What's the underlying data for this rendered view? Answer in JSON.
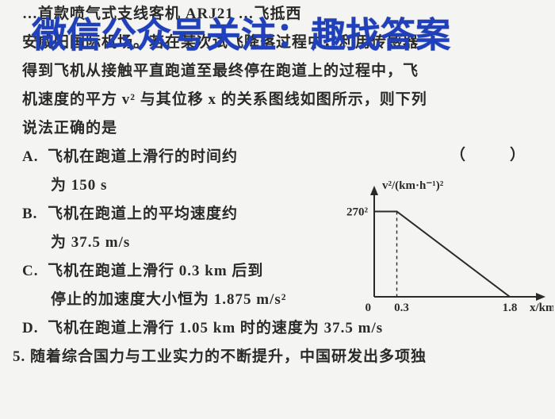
{
  "overlay": {
    "text": "微信公众号关注：趣找答案",
    "color": "#2142c8"
  },
  "question": {
    "lines": [
      "…首款喷气式支线客机 ARJ21 …飞抵西",
      "安咸阳国际机场。若在某次试飞降落过程中，利用传感器",
      "得到飞机从接触平直跑道至最终停在跑道上的过程中，飞",
      "机速度的平方 v² 与其位移 x 的关系图线如图所示，则下列",
      "说法正确的是"
    ],
    "paren": "（　　）"
  },
  "options": [
    {
      "label": "A.",
      "lines": [
        "飞机在跑道上滑行的时间约",
        "为 150 s"
      ]
    },
    {
      "label": "B.",
      "lines": [
        "飞机在跑道上的平均速度约",
        "为 37.5 m/s"
      ]
    },
    {
      "label": "C.",
      "lines": [
        "飞机在跑道上滑行 0.3 km 后到",
        "停止的加速度大小恒为 1.875 m/s²"
      ]
    },
    {
      "label": "D.",
      "lines": [
        "飞机在跑道上滑行 1.05 km 时的速度为 37.5 m/s"
      ]
    }
  ],
  "next_question": {
    "number": "5.",
    "text": "随着综合国力与工业实力的不断提升，中国研发出多项独"
  },
  "chart": {
    "type": "line",
    "y_axis_label": "v²/(km·h⁻¹)²",
    "x_axis_label": "x/km",
    "y_tick_label": "270²",
    "x_ticks": [
      "0",
      "0.3",
      "1.8"
    ],
    "xlim": [
      0,
      2.0
    ],
    "ylim": [
      0,
      80000
    ],
    "points_x": [
      0,
      0.3,
      1.8
    ],
    "points_y": [
      72900,
      72900,
      0
    ],
    "axis_color": "#2a2a28",
    "line_color": "#2a2a28",
    "dash_color": "#2a2a28",
    "line_width": 2,
    "label_fontsize": 15,
    "tick_fontsize": 15,
    "background": "#f4f4f2",
    "plateau_end_x": 0.3,
    "plateau_y": 72900,
    "zero_x": 1.8
  }
}
